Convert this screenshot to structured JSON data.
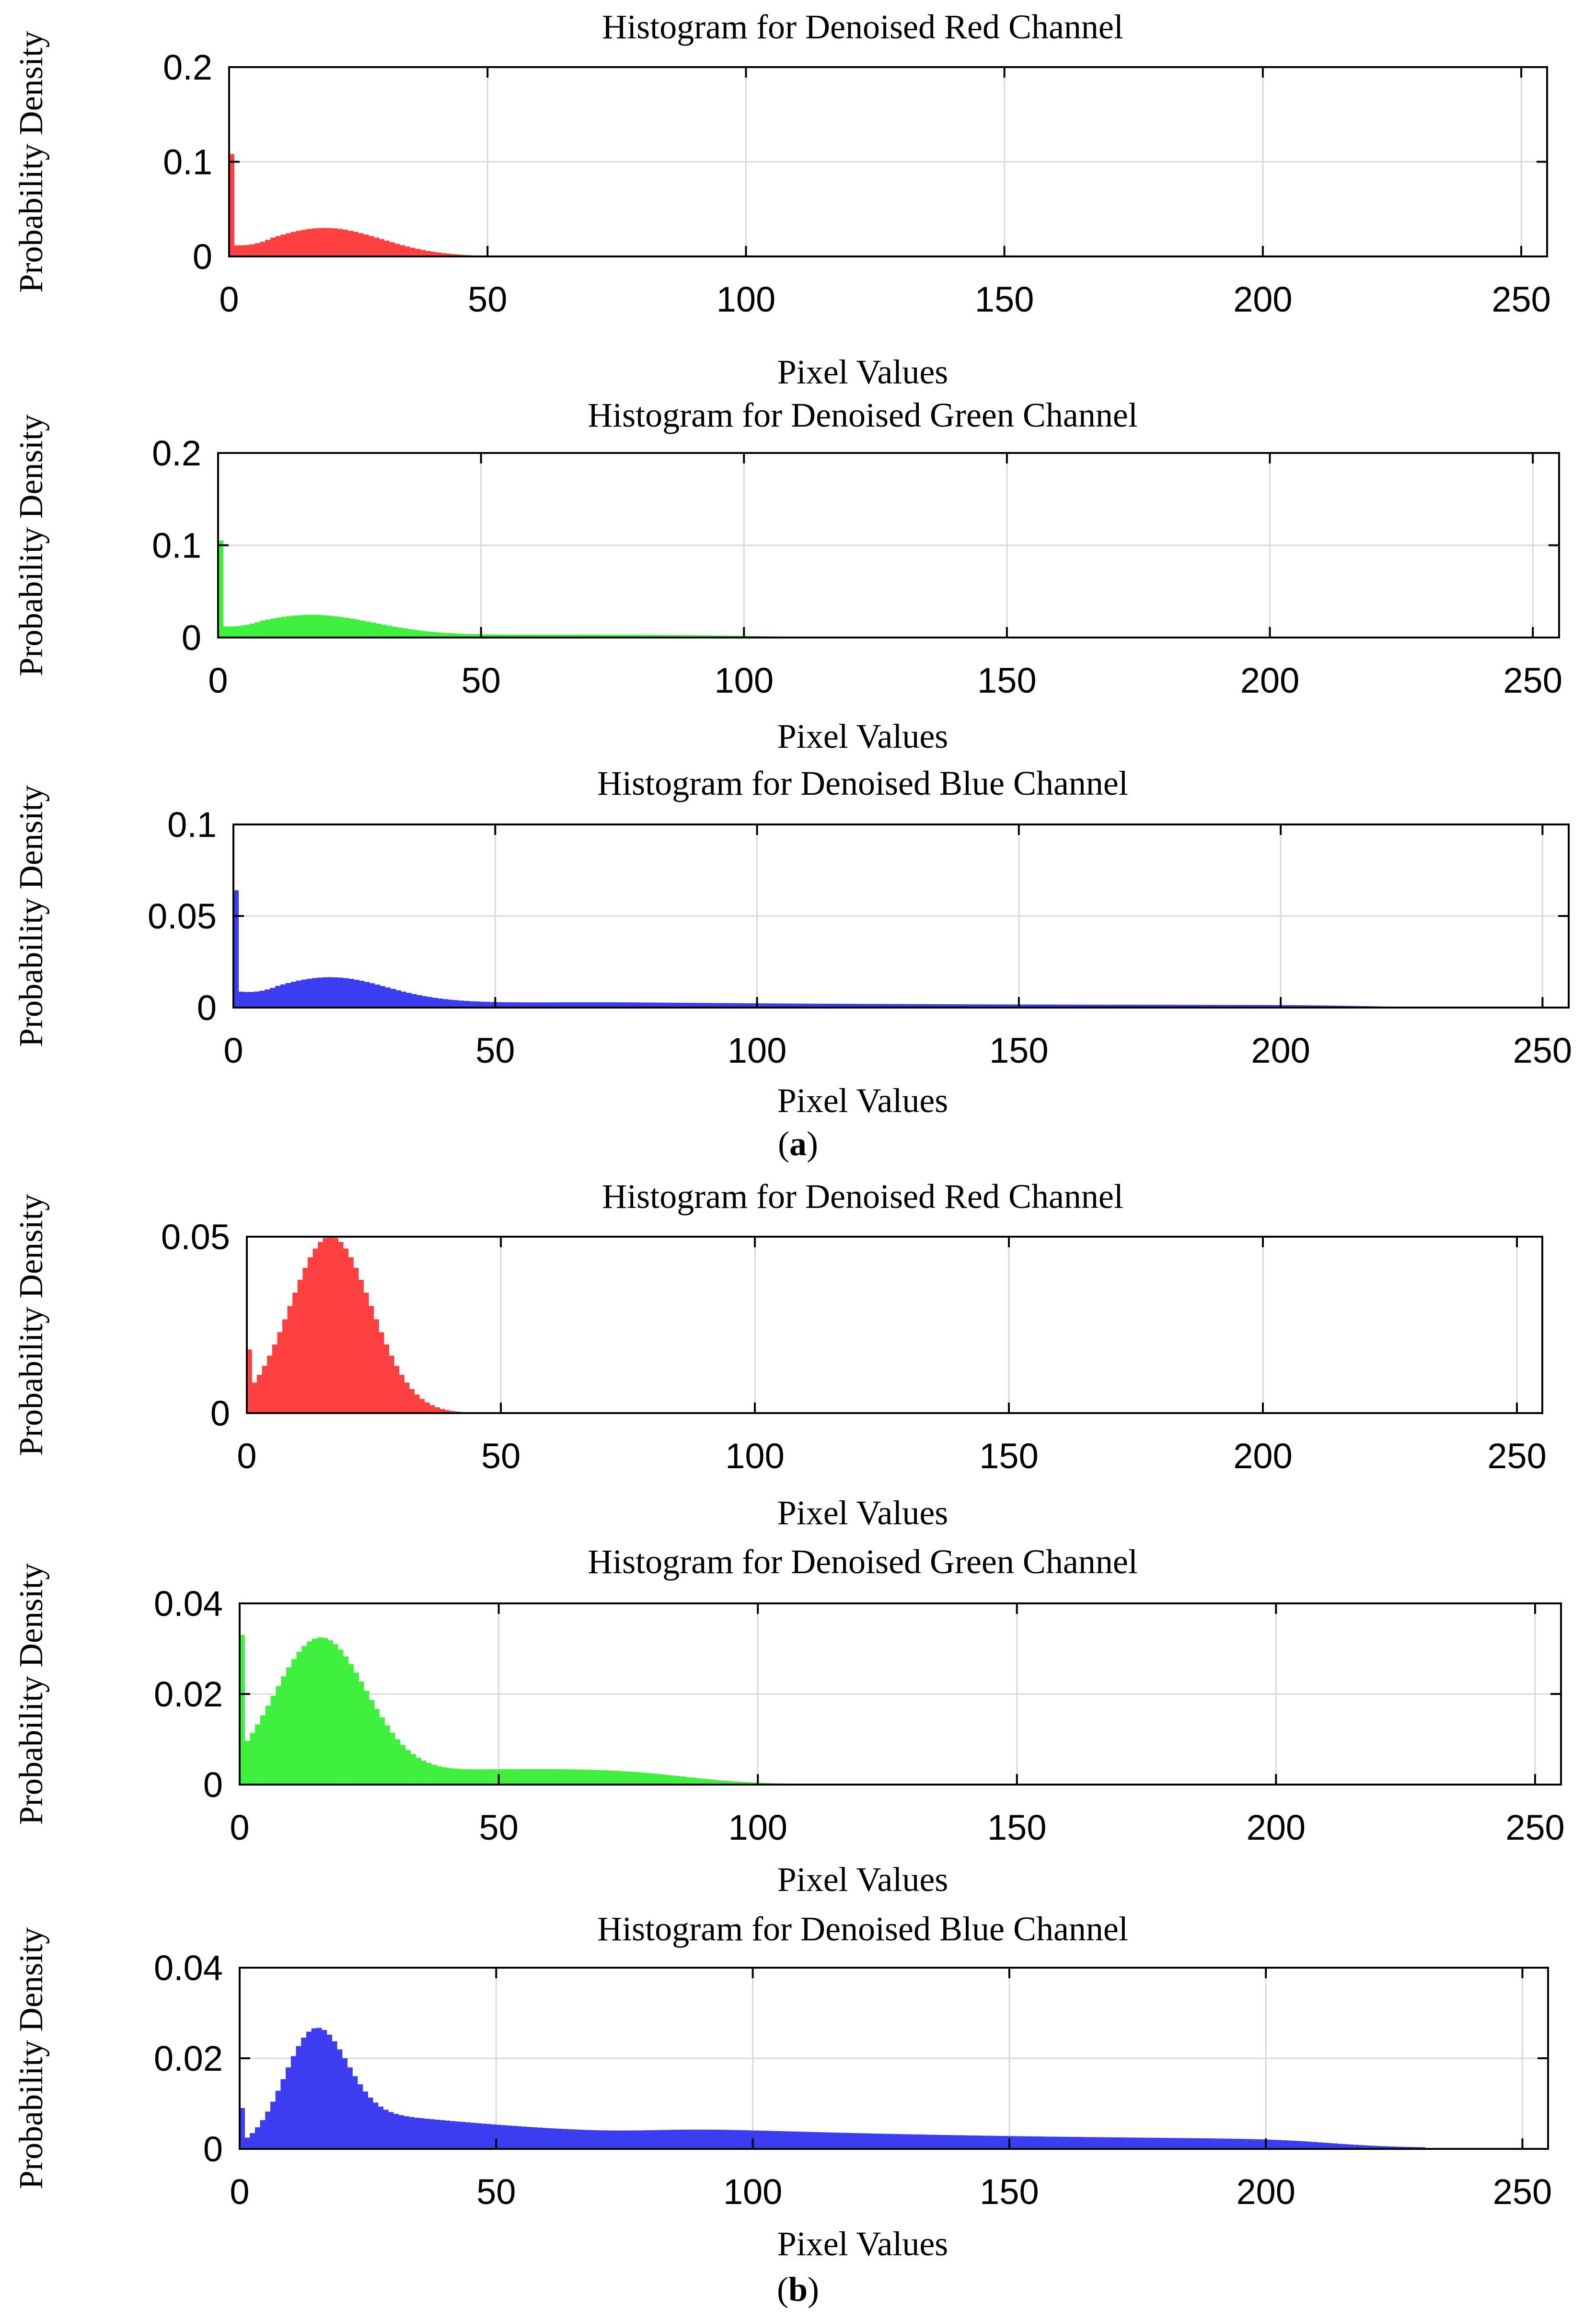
{
  "captions": {
    "a": {
      "open": "(",
      "letter": "a",
      "close": ")"
    },
    "b": {
      "open": "(",
      "letter": "b",
      "close": ")"
    }
  },
  "colors": {
    "red": "#ff4040",
    "green": "#3ff03f",
    "blue": "#3c3cf0",
    "grid": "#d9d9d9",
    "axis": "#000000"
  },
  "chart_data": [
    {
      "type": "bar",
      "panel": "a",
      "channel": "red",
      "title": "Histogram for Denoised Red Channel",
      "xlabel": "Pixel Values",
      "ylabel": "Probability Density",
      "xlim": [
        0,
        255
      ],
      "ylim": [
        0,
        0.2
      ],
      "xticks": [
        0,
        50,
        100,
        150,
        200,
        250
      ],
      "xtick_labels": [
        "0",
        "50",
        "100",
        "150",
        "200",
        "250"
      ],
      "yticks": [
        0,
        0.1,
        0.2
      ],
      "ytick_labels": [
        "0",
        "0.1",
        "0.2"
      ],
      "spike_value": 0.108,
      "components": [
        {
          "type": "gauss",
          "mu": 18,
          "sigma": 11,
          "amp": 0.03
        },
        {
          "type": "rise",
          "from": 0.012,
          "until": 8
        }
      ],
      "tail_end": 80,
      "grid": true
    },
    {
      "type": "bar",
      "panel": "a",
      "channel": "green",
      "title": "Histogram for Denoised Green Channel",
      "xlabel": "Pixel Values",
      "ylabel": "Probability Density",
      "xlim": [
        0,
        255
      ],
      "ylim": [
        0,
        0.2
      ],
      "xticks": [
        0,
        50,
        100,
        150,
        200,
        250
      ],
      "xtick_labels": [
        "0",
        "50",
        "100",
        "150",
        "200",
        "250"
      ],
      "yticks": [
        0,
        0.1,
        0.2
      ],
      "ytick_labels": [
        "0",
        "0.1",
        "0.2"
      ],
      "spike_value": 0.105,
      "components": [
        {
          "type": "gauss",
          "mu": 17,
          "sigma": 12,
          "amp": 0.024
        },
        {
          "type": "plateau",
          "value": 0.003,
          "from": 30,
          "to": 100,
          "soft": 8
        },
        {
          "type": "rise",
          "from": 0.012,
          "until": 8
        }
      ],
      "tail_end": 130,
      "grid": true
    },
    {
      "type": "bar",
      "panel": "a",
      "channel": "blue",
      "title": "Histogram for Denoised Blue Channel",
      "xlabel": "Pixel Values",
      "ylabel": "Probability Density",
      "xlim": [
        0,
        255
      ],
      "ylim": [
        0,
        0.1
      ],
      "xticks": [
        0,
        50,
        100,
        150,
        200,
        250
      ],
      "xtick_labels": [
        "0",
        "50",
        "100",
        "150",
        "200",
        "250"
      ],
      "yticks": [
        0,
        0.05,
        0.1
      ],
      "ytick_labels": [
        "0",
        "0.05",
        "0.1"
      ],
      "spike_value": 0.064,
      "components": [
        {
          "type": "gauss",
          "mu": 16,
          "sigma": 11,
          "amp": 0.015
        },
        {
          "type": "decay",
          "value": 0.0045,
          "scale": 55,
          "from": 20
        },
        {
          "type": "plateau",
          "value": 0.0012,
          "from": 60,
          "to": 215,
          "soft": 6
        },
        {
          "type": "rise",
          "from": 0.009,
          "until": 8
        }
      ],
      "tail_end": 235,
      "grid": true
    },
    {
      "type": "bar",
      "panel": "b",
      "channel": "red",
      "title": "Histogram for Denoised Red Channel",
      "xlabel": "Pixel Values",
      "ylabel": "Probability Density",
      "xlim": [
        0,
        255
      ],
      "ylim": [
        0,
        0.05
      ],
      "xticks": [
        0,
        50,
        100,
        150,
        200,
        250
      ],
      "xtick_labels": [
        "0",
        "50",
        "100",
        "150",
        "200",
        "250"
      ],
      "yticks": [
        0,
        0.05
      ],
      "ytick_labels": [
        "0",
        "0.05"
      ],
      "spike_value": 0.018,
      "components": [
        {
          "type": "gauss",
          "mu": 16,
          "sigma": 8,
          "amp": 0.05
        }
      ],
      "tail_end": 60,
      "grid": true
    },
    {
      "type": "bar",
      "panel": "b",
      "channel": "green",
      "title": "Histogram for Denoised Green Channel",
      "xlabel": "Pixel Values",
      "ylabel": "Probability Density",
      "xlim": [
        0,
        255
      ],
      "ylim": [
        0,
        0.04
      ],
      "xticks": [
        0,
        50,
        100,
        150,
        200,
        250
      ],
      "xtick_labels": [
        "0",
        "50",
        "100",
        "150",
        "200",
        "250"
      ],
      "yticks": [
        0,
        0.02,
        0.04
      ],
      "ytick_labels": [
        "0",
        "0.02",
        "0.04"
      ],
      "spike_value": 0.033,
      "components": [
        {
          "type": "gauss",
          "mu": 15,
          "sigma": 9,
          "amp": 0.032
        },
        {
          "type": "plateau",
          "value": 0.0035,
          "from": 28,
          "to": 85,
          "soft": 7
        }
      ],
      "tail_end": 105,
      "grid": true
    },
    {
      "type": "bar",
      "panel": "b",
      "channel": "blue",
      "title": "Histogram for Denoised Blue Channel",
      "xlabel": "Pixel Values",
      "ylabel": "Probability Density",
      "xlim": [
        0,
        255
      ],
      "ylim": [
        0,
        0.04
      ],
      "xticks": [
        0,
        50,
        100,
        150,
        200,
        250
      ],
      "xtick_labels": [
        "0",
        "50",
        "100",
        "150",
        "200",
        "250"
      ],
      "yticks": [
        0,
        0.02,
        0.04
      ],
      "ytick_labels": [
        "0",
        "0.02",
        "0.04"
      ],
      "spike_value": 0.009,
      "components": [
        {
          "type": "gauss",
          "mu": 14,
          "sigma": 6,
          "amp": 0.024
        },
        {
          "type": "decay",
          "value": 0.009,
          "scale": 60,
          "from": 18
        },
        {
          "type": "plateau",
          "value": 0.0018,
          "from": 80,
          "to": 212,
          "soft": 6
        }
      ],
      "tail_end": 230,
      "grid": true
    }
  ]
}
